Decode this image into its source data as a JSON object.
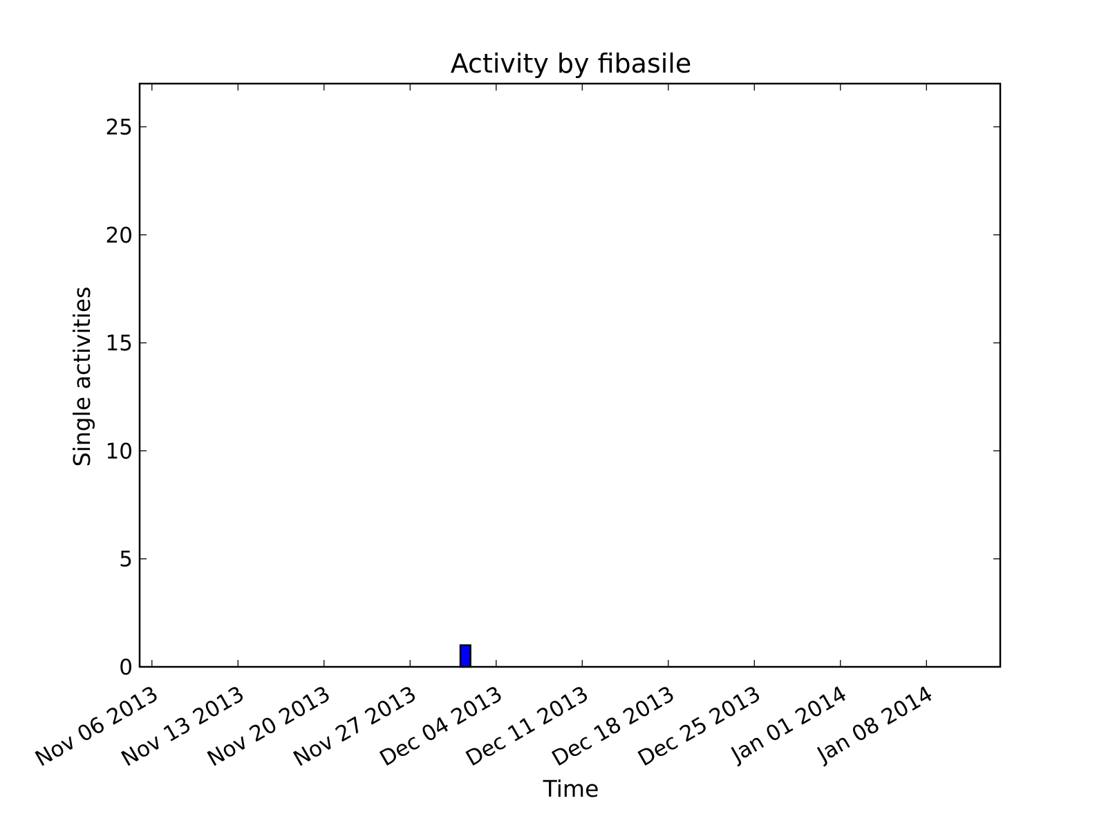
{
  "chart_data": {
    "type": "bar",
    "title": "Activity by fibasile",
    "xlabel": "Time",
    "ylabel": "Single activities",
    "x_ticks": [
      "Nov 06 2013",
      "Nov 13 2013",
      "Nov 20 2013",
      "Nov 27 2013",
      "Dec 04 2013",
      "Dec 11 2013",
      "Dec 18 2013",
      "Dec 25 2013",
      "Jan 01 2014",
      "Jan 08 2014"
    ],
    "x_range": [
      "2013-11-05",
      "2014-01-14"
    ],
    "ylim": [
      0,
      27
    ],
    "y_ticks": [
      0,
      5,
      10,
      15,
      20,
      25
    ],
    "grid": false,
    "series": [
      {
        "color": "#0000ff",
        "points": [
          {
            "date": "2013-12-01",
            "value": 1
          }
        ]
      }
    ]
  }
}
